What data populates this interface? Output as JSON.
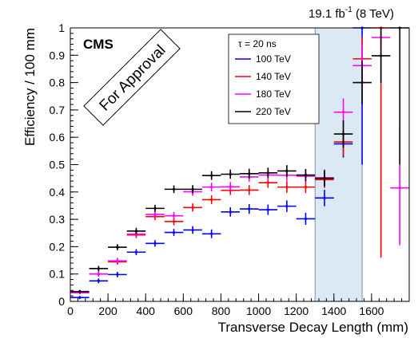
{
  "header": {
    "lumi_value": "19.1 fb",
    "lumi_exp": "-1",
    "lumi_energy": " (8 TeV)"
  },
  "cms_label": "CMS",
  "stamp": "For Approval",
  "legend": {
    "title": "τ = 20 ns",
    "entries": [
      "100 TeV",
      "140 TeV",
      "180 TeV",
      "220 TeV"
    ]
  },
  "chart_data": {
    "type": "scatter",
    "xlabel": "Transverse Decay Length (mm)",
    "ylabel": "Efficiency / 100 mm",
    "xlim": [
      0,
      1800
    ],
    "ylim": [
      0,
      1
    ],
    "x_ticks": [
      "0",
      "200",
      "400",
      "600",
      "800",
      "1000",
      "1200",
      "1400",
      "1600"
    ],
    "y_ticks": [
      "0",
      "0.1",
      "0.2",
      "0.3",
      "0.4",
      "0.5",
      "0.6",
      "0.7",
      "0.8",
      "0.9",
      "1"
    ],
    "x_tick_values": [
      0,
      200,
      400,
      600,
      800,
      1000,
      1200,
      1400,
      1600
    ],
    "y_tick_values": [
      0,
      0.1,
      0.2,
      0.3,
      0.4,
      0.5,
      0.6,
      0.7,
      0.8,
      0.9,
      1.0
    ],
    "shaded_band": [
      1300,
      1550
    ],
    "bin_half_width": 50,
    "series": [
      {
        "name": "100 TeV",
        "color": "#0000ff",
        "points": [
          [
            50,
            0.014,
            0.006
          ],
          [
            150,
            0.075,
            0.009
          ],
          [
            250,
            0.098,
            0.01
          ],
          [
            350,
            0.18,
            0.011
          ],
          [
            450,
            0.212,
            0.012
          ],
          [
            550,
            0.252,
            0.013
          ],
          [
            650,
            0.261,
            0.014
          ],
          [
            750,
            0.247,
            0.016
          ],
          [
            850,
            0.327,
            0.017
          ],
          [
            950,
            0.338,
            0.018
          ],
          [
            1050,
            0.335,
            0.019
          ],
          [
            1150,
            0.348,
            0.021
          ],
          [
            1250,
            0.302,
            0.022
          ],
          [
            1350,
            0.378,
            0.03
          ],
          [
            1450,
            0.576,
            0.05
          ],
          [
            1550,
            1.0,
            0.5
          ]
        ]
      },
      {
        "name": "140 TeV",
        "color": "#ff0000",
        "points": [
          [
            50,
            0.032,
            0.006
          ],
          [
            150,
            0.1,
            0.01
          ],
          [
            250,
            0.145,
            0.011
          ],
          [
            350,
            0.243,
            0.012
          ],
          [
            450,
            0.31,
            0.013
          ],
          [
            550,
            0.292,
            0.014
          ],
          [
            650,
            0.343,
            0.015
          ],
          [
            750,
            0.372,
            0.016
          ],
          [
            850,
            0.406,
            0.017
          ],
          [
            950,
            0.407,
            0.018
          ],
          [
            1050,
            0.434,
            0.019
          ],
          [
            1150,
            0.418,
            0.021
          ],
          [
            1250,
            0.418,
            0.022
          ],
          [
            1350,
            0.445,
            0.03
          ],
          [
            1450,
            0.583,
            0.05
          ],
          [
            1550,
            0.887,
            0.08
          ],
          [
            1650,
            1.0,
            0.84
          ]
        ]
      },
      {
        "name": "180 TeV",
        "color": "#ff00ff",
        "points": [
          [
            50,
            0.032,
            0.006
          ],
          [
            150,
            0.1,
            0.01
          ],
          [
            250,
            0.148,
            0.011
          ],
          [
            350,
            0.246,
            0.012
          ],
          [
            450,
            0.318,
            0.013
          ],
          [
            550,
            0.313,
            0.014
          ],
          [
            650,
            0.401,
            0.015
          ],
          [
            750,
            0.418,
            0.016
          ],
          [
            850,
            0.419,
            0.017
          ],
          [
            950,
            0.455,
            0.018
          ],
          [
            1050,
            0.462,
            0.019
          ],
          [
            1150,
            0.461,
            0.021
          ],
          [
            1250,
            0.458,
            0.022
          ],
          [
            1350,
            0.452,
            0.03
          ],
          [
            1450,
            0.692,
            0.05
          ],
          [
            1550,
            0.862,
            0.08
          ],
          [
            1650,
            0.965,
            0.06
          ],
          [
            1750,
            0.415,
            0.21
          ]
        ]
      },
      {
        "name": "220 TeV",
        "color": "#000000",
        "points": [
          [
            50,
            0.036,
            0.006
          ],
          [
            150,
            0.12,
            0.01
          ],
          [
            250,
            0.198,
            0.011
          ],
          [
            350,
            0.257,
            0.012
          ],
          [
            450,
            0.34,
            0.013
          ],
          [
            550,
            0.41,
            0.014
          ],
          [
            650,
            0.41,
            0.015
          ],
          [
            750,
            0.46,
            0.016
          ],
          [
            850,
            0.465,
            0.017
          ],
          [
            950,
            0.467,
            0.018
          ],
          [
            1050,
            0.47,
            0.019
          ],
          [
            1150,
            0.477,
            0.021
          ],
          [
            1250,
            0.462,
            0.022
          ],
          [
            1350,
            0.45,
            0.03
          ],
          [
            1450,
            0.612,
            0.05
          ],
          [
            1550,
            0.8,
            0.08
          ],
          [
            1650,
            0.898,
            0.1
          ],
          [
            1750,
            1.0,
            0.5
          ]
        ]
      }
    ]
  }
}
